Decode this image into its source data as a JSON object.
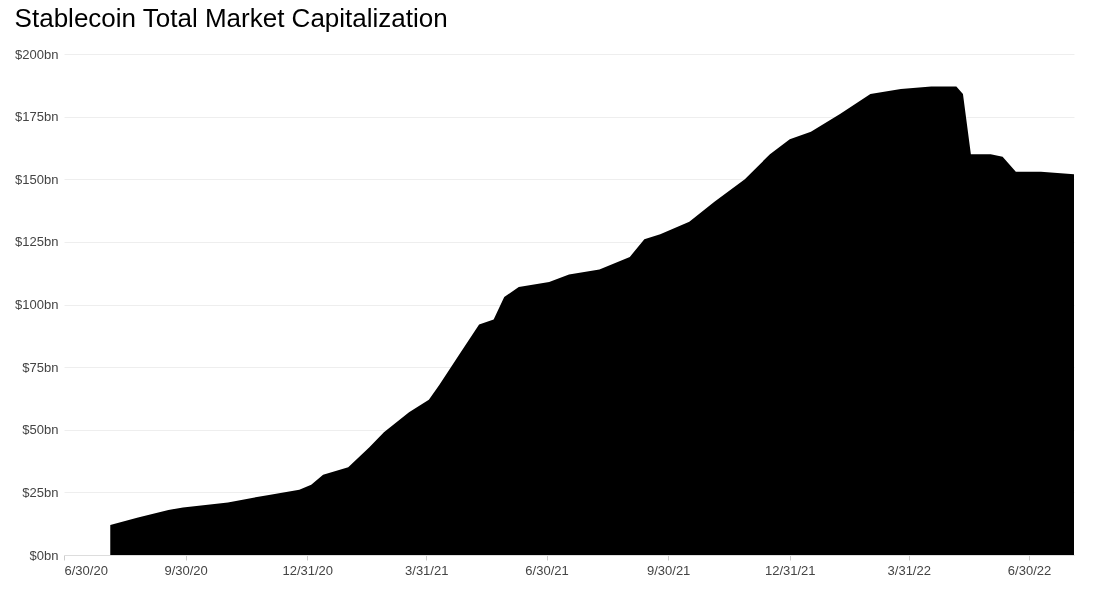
{
  "chart_data": {
    "type": "area",
    "title": "Stablecoin Total Market Capitalization",
    "x": [
      "2020-08-04",
      "2020-08-25",
      "2020-09-17",
      "2020-09-28",
      "2020-11-01",
      "2020-12-02",
      "2020-12-25",
      "2021-01-03",
      "2021-01-12",
      "2021-01-31",
      "2021-02-16",
      "2021-02-27",
      "2021-03-18",
      "2021-04-02",
      "2021-04-10",
      "2021-04-25",
      "2021-05-10",
      "2021-05-21",
      "2021-05-29",
      "2021-06-09",
      "2021-07-02",
      "2021-07-17",
      "2021-08-09",
      "2021-09-01",
      "2021-09-12",
      "2021-09-24",
      "2021-10-16",
      "2021-11-04",
      "2021-11-27",
      "2021-12-16",
      "2021-12-31",
      "2022-01-16",
      "2022-02-07",
      "2022-03-02",
      "2022-03-25",
      "2022-04-17",
      "2022-05-06",
      "2022-05-11",
      "2022-05-17",
      "2022-06-01",
      "2022-06-10",
      "2022-06-20",
      "2022-07-09",
      "2022-08-03"
    ],
    "series": [
      {
        "color": "#000000",
        "values": [
          12,
          15,
          18,
          19,
          21,
          24,
          26,
          28,
          32,
          35,
          43,
          49,
          57,
          62,
          68,
          80,
          92,
          94,
          103,
          107,
          109,
          112,
          114,
          119,
          126,
          128,
          133,
          141,
          150,
          160,
          166,
          169,
          176,
          184,
          186,
          187,
          187,
          184,
          160,
          160,
          159,
          153,
          153,
          152
        ]
      }
    ],
    "xlim": [
      "2020-06-30",
      "2022-08-03"
    ],
    "xticks": [
      {
        "value": "2020-06-30",
        "label": "6/30/20"
      },
      {
        "value": "2020-09-30",
        "label": "9/30/20"
      },
      {
        "value": "2020-12-31",
        "label": "12/31/20"
      },
      {
        "value": "2021-03-31",
        "label": "3/31/21"
      },
      {
        "value": "2021-06-30",
        "label": "6/30/21"
      },
      {
        "value": "2021-09-30",
        "label": "9/30/21"
      },
      {
        "value": "2021-12-31",
        "label": "12/31/21"
      },
      {
        "value": "2022-03-31",
        "label": "3/31/22"
      },
      {
        "value": "2022-06-30",
        "label": "6/30/22"
      }
    ],
    "ylim": [
      0,
      200
    ],
    "yticks": [
      {
        "value": 0,
        "label": "$0bn"
      },
      {
        "value": 25,
        "label": "$25bn"
      },
      {
        "value": 50,
        "label": "$50bn"
      },
      {
        "value": 75,
        "label": "$75bn"
      },
      {
        "value": 100,
        "label": "$100bn"
      },
      {
        "value": 125,
        "label": "$125bn"
      },
      {
        "value": 150,
        "label": "$150bn"
      },
      {
        "value": 175,
        "label": "$175bn"
      },
      {
        "value": 200,
        "label": "$200bn"
      }
    ],
    "grid": "y",
    "legend": false
  }
}
